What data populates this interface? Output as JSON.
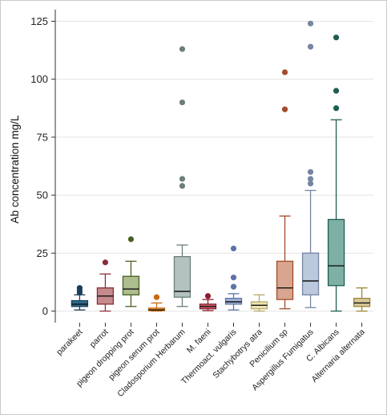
{
  "chart_data": {
    "type": "box",
    "title": "",
    "xlabel": "",
    "ylabel": "Ab concentration mg/L",
    "ylim": [
      -5,
      130
    ],
    "yticks": [
      0,
      25,
      50,
      75,
      100,
      125
    ],
    "grid": "horizontal",
    "categories": [
      "parakeet",
      "parrot",
      "pigeon dropping prot",
      "pigeon serum prot",
      "Cladosporium Herbarum",
      "M. faeni",
      "Thermoact. vulgaris",
      "Stachybotrys atra",
      "Penicilium sp",
      "Aspergillus Fumigatus",
      "C. Albicans",
      "Alternaria alternata"
    ],
    "series": [
      {
        "min": 0.5,
        "q1": 2,
        "median": 3,
        "q3": 4.5,
        "max": 7,
        "outliers": [
          8,
          9,
          10
        ],
        "fill": "#2d6a8f",
        "stroke": "#1b3f5a"
      },
      {
        "min": 0,
        "q1": 3,
        "median": 6.5,
        "q3": 10,
        "max": 16,
        "outliers": [
          21
        ],
        "fill": "#c68a8c",
        "stroke": "#8b2e3a"
      },
      {
        "min": 2,
        "q1": 7,
        "median": 9.5,
        "q3": 15,
        "max": 21.5,
        "outliers": [
          31
        ],
        "fill": "#aebd8e",
        "stroke": "#4a5f22"
      },
      {
        "min": 0,
        "q1": 0.2,
        "median": 0.5,
        "q3": 1.3,
        "max": 3.5,
        "outliers": [
          6
        ],
        "fill": "#e6a04a",
        "stroke": "#c96a0e"
      },
      {
        "min": 2,
        "q1": 6,
        "median": 8.5,
        "q3": 23.5,
        "max": 28.5,
        "outliers": [
          54,
          57,
          90,
          113
        ],
        "fill": "#b4c2bf",
        "stroke": "#6b7f7b"
      },
      {
        "min": 0.2,
        "q1": 1,
        "median": 2,
        "q3": 3,
        "max": 5,
        "outliers": [
          6.5
        ],
        "fill": "#cc5d6a",
        "stroke": "#8b1f2e"
      },
      {
        "min": 0.5,
        "q1": 3,
        "median": 4,
        "q3": 5.5,
        "max": 7.5,
        "outliers": [
          10.5,
          14.5,
          27
        ],
        "fill": "#a4b6d8",
        "stroke": "#5d73a8"
      },
      {
        "min": 0,
        "q1": 1,
        "median": 2.5,
        "q3": 4,
        "max": 7,
        "outliers": [],
        "fill": "#ece3b0",
        "stroke": "#b7a96a"
      },
      {
        "min": 1,
        "q1": 5,
        "median": 10,
        "q3": 21.5,
        "max": 41,
        "outliers": [
          87,
          103
        ],
        "fill": "#d8a690",
        "stroke": "#a34c2a"
      },
      {
        "min": 1.5,
        "q1": 7,
        "median": 13,
        "q3": 25,
        "max": 52,
        "outliers": [
          55,
          57,
          60,
          114,
          124
        ],
        "fill": "#bcc8db",
        "stroke": "#7586a3"
      },
      {
        "min": 0,
        "q1": 11,
        "median": 19.5,
        "q3": 39.5,
        "max": 82.5,
        "outliers": [
          87.5,
          95,
          118
        ],
        "fill": "#7fb0a6",
        "stroke": "#1e5e52"
      },
      {
        "min": 0,
        "q1": 2,
        "median": 3.5,
        "q3": 5.5,
        "max": 10,
        "outliers": [],
        "fill": "#d9c89a",
        "stroke": "#9c8537"
      }
    ]
  }
}
